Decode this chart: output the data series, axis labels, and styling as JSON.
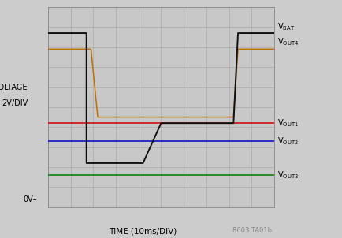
{
  "xlabel": "TIME (10ms/DIV)",
  "ylabel_line1": "VOLTAGE",
  "ylabel_line2": "2V/DIV",
  "ov_label": "0V–",
  "bg_color": "#cccccc",
  "grid_color": "#b0b0b0",
  "plot_bg": "#c8c8c8",
  "xlim": [
    0,
    10
  ],
  "ylim": [
    0,
    10
  ],
  "x_ticks": [
    0,
    1,
    2,
    3,
    4,
    5,
    6,
    7,
    8,
    9,
    10
  ],
  "y_ticks": [
    0,
    1,
    2,
    3,
    4,
    5,
    6,
    7,
    8,
    9,
    10
  ],
  "vbat": {
    "color": "#111111",
    "x": [
      0,
      1.5,
      1.7,
      1.7,
      4.2,
      5.0,
      5.5,
      5.5,
      8.2,
      8.4,
      8.4,
      10
    ],
    "y": [
      8.7,
      8.7,
      8.7,
      2.2,
      2.2,
      4.2,
      4.2,
      4.2,
      4.2,
      8.7,
      8.7,
      8.7
    ]
  },
  "vout4": {
    "color": "#c07000",
    "x": [
      0,
      1.5,
      1.9,
      2.2,
      8.2,
      8.4,
      10
    ],
    "y": [
      7.9,
      7.9,
      7.9,
      4.5,
      4.5,
      7.9,
      7.9
    ]
  },
  "vout1": {
    "color": "#cc0000",
    "x": [
      0,
      10
    ],
    "y": [
      4.2,
      4.2
    ]
  },
  "vout2": {
    "color": "#0000bb",
    "x": [
      0,
      10
    ],
    "y": [
      3.3,
      3.3
    ]
  },
  "vout3": {
    "color": "#007700",
    "x": [
      0,
      10
    ],
    "y": [
      1.6,
      1.6
    ]
  },
  "watermark": "8603 TA01b",
  "label_fontsize": 7.0,
  "axis_fontsize": 7.5,
  "watermark_fontsize": 6.0
}
